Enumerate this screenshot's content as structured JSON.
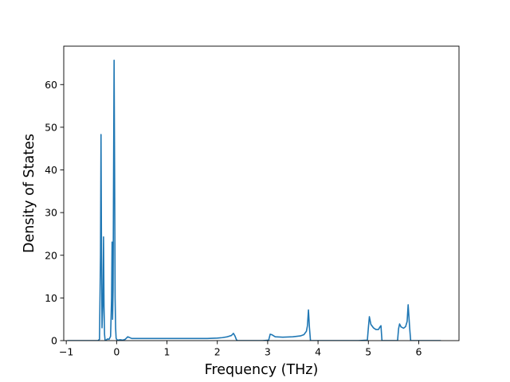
{
  "chart_data": {
    "type": "line",
    "title": "",
    "xlabel": "Frequency (THz)",
    "ylabel": "Density of States",
    "xlim": [
      -1.05,
      6.8
    ],
    "ylim": [
      0,
      69
    ],
    "xticks": [
      -1,
      0,
      1,
      2,
      3,
      4,
      5,
      6
    ],
    "yticks": [
      0,
      10,
      20,
      30,
      40,
      50,
      60
    ],
    "xtick_labels": [
      "−1",
      "0",
      "1",
      "2",
      "3",
      "4",
      "5",
      "6"
    ],
    "ytick_labels": [
      "0",
      "10",
      "20",
      "30",
      "40",
      "50",
      "60"
    ],
    "grid": false,
    "legend": "none",
    "series": [
      {
        "color": "#1f77b4",
        "x": [
          -0.98,
          -0.37,
          -0.34,
          -0.32,
          -0.31,
          -0.3,
          -0.29,
          -0.27,
          -0.26,
          -0.25,
          -0.24,
          -0.23,
          -0.22,
          -0.21,
          -0.18,
          -0.15,
          -0.12,
          -0.1,
          -0.09,
          -0.08,
          -0.07,
          -0.06,
          -0.05,
          -0.04,
          -0.03,
          -0.02,
          -0.01,
          0.0,
          0.01,
          0.03,
          0.07,
          0.12,
          0.17,
          0.22,
          0.3,
          0.5,
          1.0,
          1.5,
          1.8,
          2.0,
          2.1,
          2.2,
          2.28,
          2.32,
          2.35,
          2.38,
          2.4,
          2.43,
          2.6,
          2.9,
          3.02,
          3.05,
          3.08,
          3.15,
          3.3,
          3.5,
          3.65,
          3.72,
          3.77,
          3.79,
          3.81,
          3.83,
          3.85,
          4.2,
          4.5,
          4.8,
          4.98,
          5.0,
          5.02,
          5.05,
          5.1,
          5.15,
          5.2,
          5.23,
          5.25,
          5.27,
          5.5,
          5.58,
          5.6,
          5.62,
          5.65,
          5.7,
          5.74,
          5.77,
          5.79,
          5.82,
          5.84,
          6.0,
          6.44
        ],
        "y": [
          0,
          0,
          0.3,
          20,
          48.3,
          20,
          3,
          10,
          24.3,
          8,
          1.5,
          0.2,
          0,
          0.1,
          0.4,
          0.3,
          1,
          10,
          23.1,
          5,
          12,
          40,
          65.7,
          40,
          10,
          3,
          0.6,
          0.3,
          0.2,
          0.1,
          0.2,
          0.1,
          0.3,
          0.9,
          0.5,
          0.5,
          0.5,
          0.5,
          0.5,
          0.6,
          0.7,
          0.9,
          1.2,
          1.7,
          1.1,
          0.2,
          0,
          0,
          0,
          0,
          0.1,
          1.5,
          1.4,
          0.9,
          0.8,
          0.9,
          1.1,
          1.4,
          2.2,
          3.5,
          7.2,
          3,
          0,
          0,
          0,
          0,
          0.1,
          3,
          5.6,
          3.8,
          3,
          2.6,
          2.6,
          3.2,
          3.5,
          0,
          0,
          0,
          2.8,
          3.9,
          3.2,
          2.9,
          3.3,
          4.5,
          8.4,
          3,
          0,
          0,
          0
        ]
      }
    ]
  }
}
